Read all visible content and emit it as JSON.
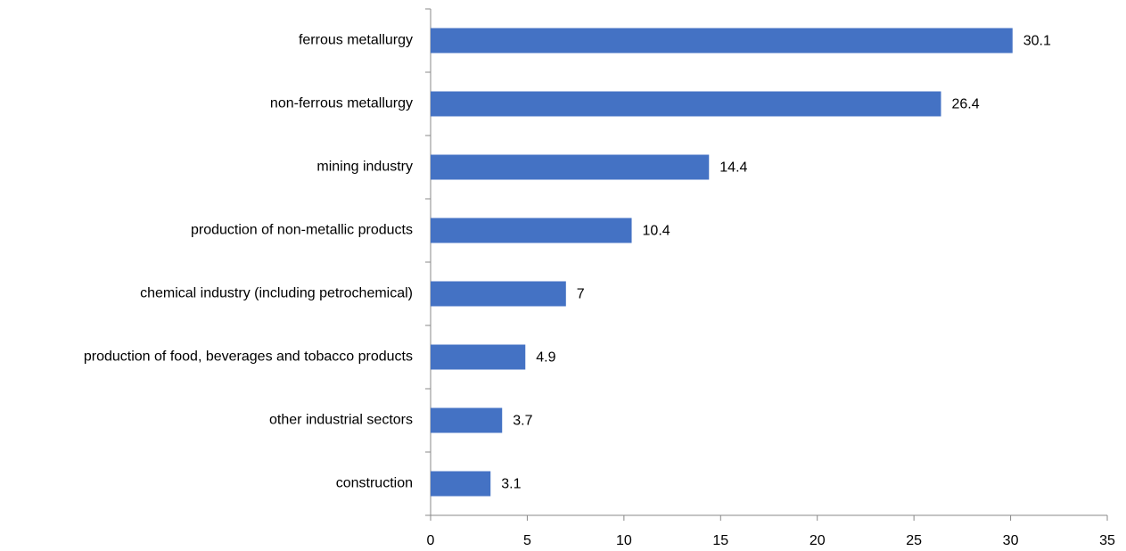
{
  "chart_data": {
    "type": "bar",
    "orientation": "horizontal",
    "categories": [
      "ferrous metallurgy",
      "non-ferrous metallurgy",
      "mining industry",
      "production of non-metallic products",
      "chemical industry (including petrochemical)",
      "production of food, beverages and tobacco products",
      "other industrial sectors",
      "construction"
    ],
    "values": [
      30.1,
      26.4,
      14.4,
      10.4,
      7,
      4.9,
      3.7,
      3.1
    ],
    "color": "#4472c4",
    "xlim": [
      0,
      35
    ],
    "xticks": [
      0,
      5,
      10,
      15,
      20,
      25,
      30,
      35
    ],
    "grid": false
  }
}
